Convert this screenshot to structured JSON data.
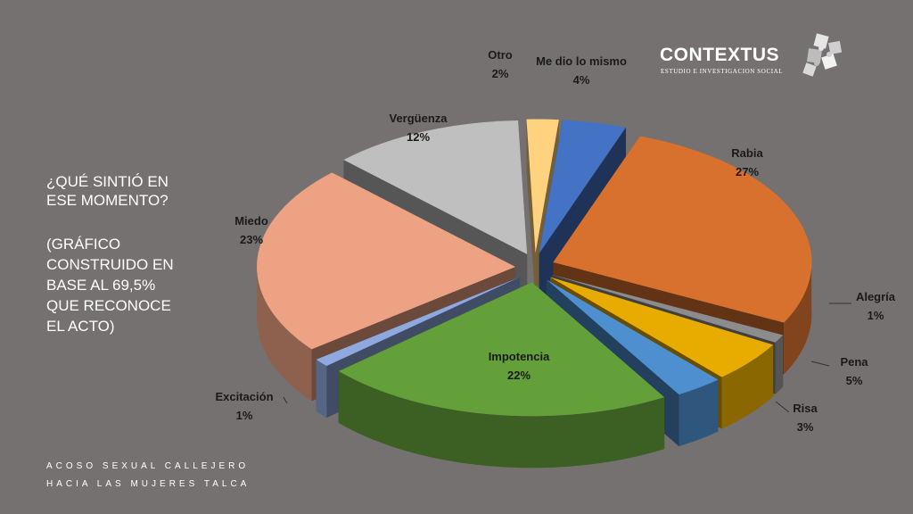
{
  "title": {
    "question": "¿QUÉ SINTIÓ EN\nESE MOMENTO?",
    "note": "(GRÁFICO\nCONSTRUIDO EN\nBASE AL 69,5%\nQUE RECONOCE\nEL ACTO)"
  },
  "footer": {
    "line1": "ACOSO SEXUAL CALLEJERO",
    "line2": "HACIA LAS MUJERES TALCA"
  },
  "logo": {
    "name": "CONTEXTUS",
    "tagline": "ESTUDIO E INVESTIGACION SOCIAL",
    "icon": "puzzle-icon"
  },
  "chart_data": {
    "type": "pie",
    "style": "3d-exploded",
    "title": "",
    "slices": [
      {
        "name": "Me dio lo mismo",
        "value": 4,
        "label": "4%",
        "color": "#4472c4"
      },
      {
        "name": "Rabia",
        "value": 27,
        "label": "27%",
        "color": "#d9712e"
      },
      {
        "name": "Alegría",
        "value": 1,
        "label": "1%",
        "color": "#8c8c8c"
      },
      {
        "name": "Pena",
        "value": 5,
        "label": "5%",
        "color": "#e8ac00"
      },
      {
        "name": "Risa",
        "value": 3,
        "label": "3%",
        "color": "#4e8fd0"
      },
      {
        "name": "Impotencia",
        "value": 22,
        "label": "22%",
        "color": "#64a03a"
      },
      {
        "name": "Excitación",
        "value": 1,
        "label": "1%",
        "color": "#8fa8de"
      },
      {
        "name": "Miedo",
        "value": 23,
        "label": "23%",
        "color": "#eda283"
      },
      {
        "name": "Vergüenza",
        "value": 12,
        "label": "12%",
        "color": "#bfbfbf"
      },
      {
        "name": "Otro",
        "value": 2,
        "label": "2%",
        "color": "#ffd27f"
      }
    ]
  }
}
